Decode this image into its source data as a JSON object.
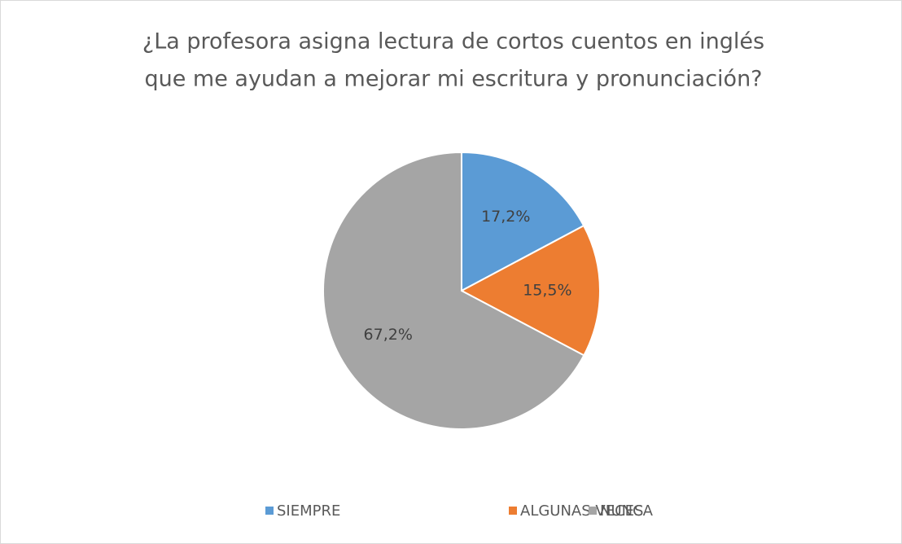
{
  "chart_data": {
    "type": "pie",
    "title": [
      "¿La profesora asigna lectura de cortos cuentos en inglés",
      "que me ayudan a mejorar mi escritura y pronunciación?"
    ],
    "categories": [
      "SIEMPRE",
      "ALGUNAS VECES",
      "NUNCA"
    ],
    "values": [
      17.2,
      15.5,
      67.2
    ],
    "value_labels": [
      "17,2%",
      "15,5%",
      "67,2%"
    ],
    "colors": [
      "#5b9bd5",
      "#ed7d31",
      "#a5a5a5"
    ],
    "legend": "bottom"
  }
}
